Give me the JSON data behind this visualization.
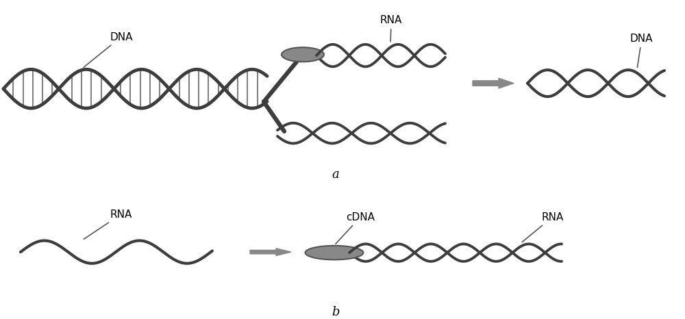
{
  "bg_color": "#ffffff",
  "dna_color": "#3d3d3d",
  "protein_color": "#888888",
  "protein_edge": "#555555",
  "arrow_color": "#888888",
  "label_color": "#000000",
  "label_a": "a",
  "label_b": "b",
  "label_dna": "DNA",
  "label_rna": "RNA",
  "label_cdna": "cDNA"
}
